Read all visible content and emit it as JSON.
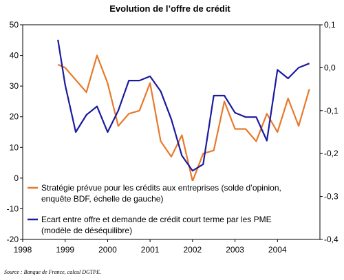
{
  "chart_data": {
    "type": "line",
    "title": "Evolution de l’offre de crédit",
    "x_ticks": [
      "1998",
      "1999",
      "2000",
      "2001",
      "2002",
      "2003",
      "2004"
    ],
    "x_range": [
      1998,
      2005
    ],
    "left_axis": {
      "range": [
        -20,
        50
      ],
      "ticks": [
        "50",
        "40",
        "30",
        "20",
        "10",
        "0",
        "-10",
        "-20"
      ],
      "tick_values": [
        50,
        40,
        30,
        20,
        10,
        0,
        -10,
        -20
      ]
    },
    "right_axis": {
      "range": [
        -0.4,
        0.1
      ],
      "ticks": [
        "0,1",
        "0,0",
        "-0,1",
        "-0,2",
        "-0,3",
        "-0,4"
      ],
      "tick_values": [
        0.1,
        0.0,
        -0.1,
        -0.2,
        -0.3,
        -0.4
      ]
    },
    "series": [
      {
        "name": "Stratégie prévue pour les crédits aux entreprises (solde d’opinion, enquête BDF, échelle de gauche)",
        "name_lines": [
          "Stratégie prévue pour les crédits aux entreprises (solde d’opinion,",
          "enquête BDF, échelle de gauche)"
        ],
        "axis": "left",
        "color": "#e8792a",
        "x": [
          1998.83,
          1999.0,
          1999.25,
          1999.5,
          1999.75,
          2000.0,
          2000.25,
          2000.5,
          2000.75,
          2001.0,
          2001.25,
          2001.5,
          2001.75,
          2002.0,
          2002.25,
          2002.5,
          2002.75,
          2003.0,
          2003.25,
          2003.5,
          2003.75,
          2004.0,
          2004.25,
          2004.5,
          2004.75
        ],
        "values": [
          37,
          36,
          32,
          28,
          40,
          31,
          17,
          21,
          22,
          31,
          12,
          7,
          14,
          -1,
          8,
          9,
          25,
          16,
          16,
          12,
          21,
          15,
          26,
          17,
          29
        ]
      },
      {
        "name": "Ecart entre offre et demande de crédit court terme par les PME (modèle de déséquilibre)",
        "name_lines": [
          "Ecart entre offre et demande de crédit court terme par les PME",
          "(modèle de déséquilibre)"
        ],
        "axis": "right",
        "color": "#1a1aa0",
        "x": [
          1998.83,
          1999.0,
          1999.25,
          1999.5,
          1999.75,
          2000.0,
          2000.25,
          2000.5,
          2000.75,
          2001.0,
          2001.25,
          2001.5,
          2001.75,
          2002.0,
          2002.25,
          2002.5,
          2002.75,
          2003.0,
          2003.25,
          2003.5,
          2003.75,
          2004.0,
          2004.25,
          2004.5,
          2004.75
        ],
        "values": [
          0.065,
          -0.04,
          -0.15,
          -0.11,
          -0.09,
          -0.15,
          -0.1,
          -0.03,
          -0.03,
          -0.02,
          -0.055,
          -0.12,
          -0.205,
          -0.24,
          -0.225,
          -0.065,
          -0.065,
          -0.105,
          -0.115,
          -0.115,
          -0.17,
          -0.005,
          -0.025,
          0.0,
          0.01
        ]
      }
    ],
    "grid": false,
    "legend_position": "bottom-left"
  },
  "source": "Source : Banque de France, calcul DGTPE."
}
